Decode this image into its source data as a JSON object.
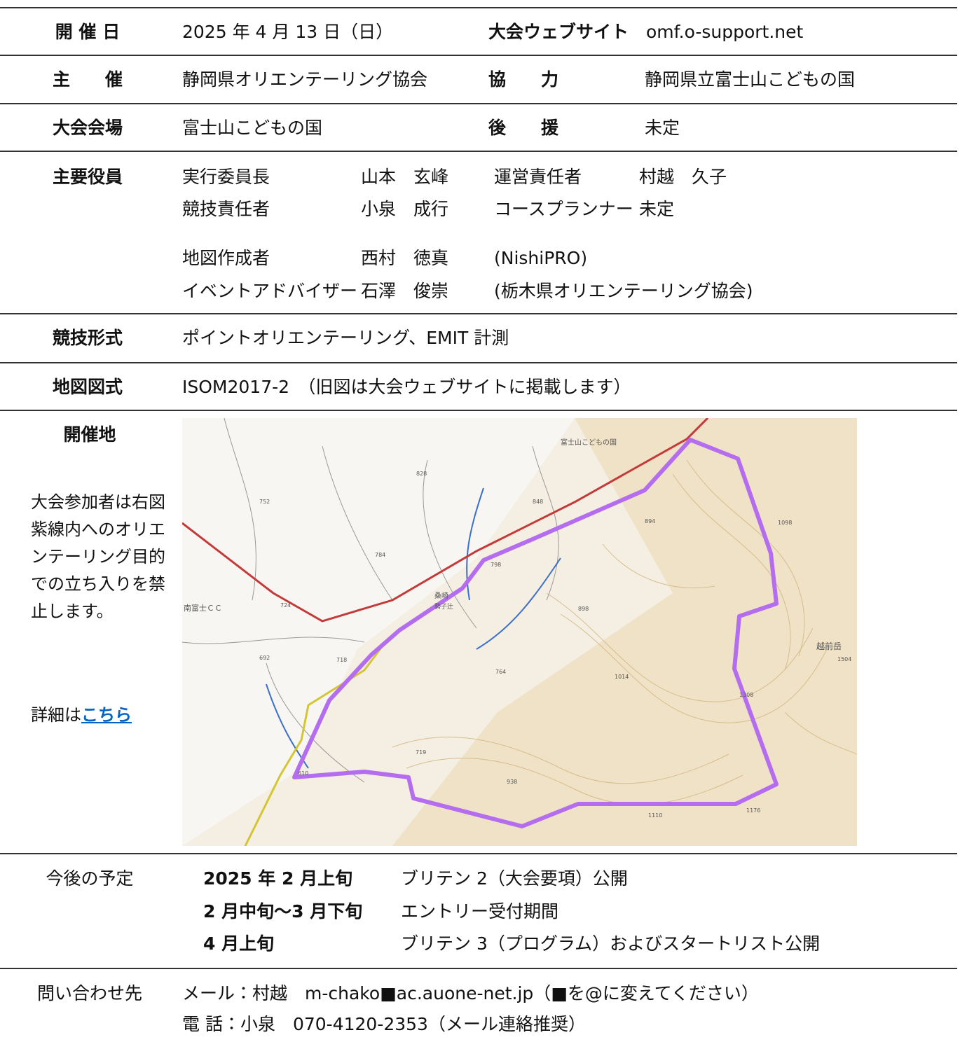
{
  "rows": [
    {
      "label": "開 催 日",
      "value": "2025 年 4 月 13 日（日）",
      "label2": "大会ウェブサイト",
      "value2": "omf.o-support.net"
    },
    {
      "label": "主　　催",
      "value": "静岡県オリエンテーリング協会",
      "label2": "協　　力",
      "value2": "静岡県立富士山こどもの国"
    },
    {
      "label": "大会会場",
      "value": "富士山こどもの国",
      "label2": "後　　援",
      "value2": "未定"
    }
  ],
  "officers": {
    "label": "主要役員",
    "entries": [
      [
        "実行委員長",
        "山本　玄峰",
        "運営責任者",
        "村越　久子"
      ],
      [
        "競技責任者",
        "小泉　成行",
        "コースプランナー",
        "未定"
      ],
      [
        "地図作成者",
        "西村　徳真",
        "(NishiPRO)"
      ],
      [
        "イベントアドバイザー",
        "石澤　俊崇",
        "(栃木県オリエンテーリング協会)"
      ]
    ]
  },
  "format": {
    "label": "競技形式",
    "value": "ポイントオリエンテーリング、EMIT 計測"
  },
  "map_spec": {
    "label": "地図図式",
    "value": "ISOM2017-2　（旧図は大会ウェブサイトに掲載します）"
  },
  "venue": {
    "label": "開催地",
    "notice": "大会参加者は右図紫線内へのオリエンテーリング目的での立ち入りを禁止します。",
    "details_prefix": "詳細は",
    "details_link": "こちら",
    "map_labels": [
      "富士山こどもの国",
      "越前岳",
      "南富士ＣＣ",
      "桑崎",
      "勢子辻",
      "828",
      "752",
      "848",
      "894",
      "1098",
      "784",
      "798",
      "898",
      "724",
      "692",
      "718",
      "764",
      "1014",
      "1308",
      "1504",
      "719",
      "938",
      "610",
      "1110",
      "1176"
    ]
  },
  "schedule": {
    "label": "今後の予定",
    "items": [
      [
        "2025 年 2 月上旬",
        "ブリテン 2（大会要項）公開"
      ],
      [
        "2 月中旬～3 月下旬",
        "エントリー受付期間"
      ],
      [
        "4 月上旬",
        "ブリテン 3（プログラム）およびスタートリスト公開"
      ]
    ]
  },
  "contact": {
    "label": "問い合わせ先",
    "lines": [
      "メール：村越　m-chako■ac.auone-net.jp（■を@に変えてください）",
      "電 話：小泉　070-4120-2353（メール連絡推奨）"
    ]
  }
}
